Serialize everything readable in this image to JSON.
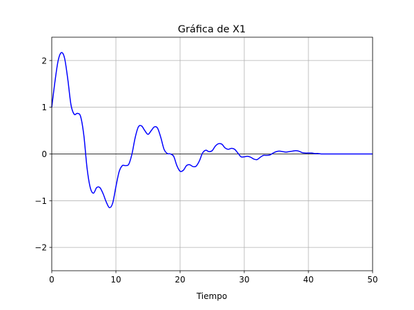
{
  "chart_data": {
    "type": "line",
    "title": "Gráfica de X1",
    "xlabel": "Tiempo",
    "ylabel": "",
    "xlim": [
      0,
      50
    ],
    "ylim": [
      -2.5,
      2.5
    ],
    "x_ticks": [
      0,
      10,
      20,
      30,
      40,
      50
    ],
    "y_ticks": [
      -2,
      -1,
      0,
      1,
      2
    ],
    "x_tick_labels": [
      "0",
      "10",
      "20",
      "30",
      "40",
      "50"
    ],
    "y_tick_labels": [
      "−2",
      "−1",
      "0",
      "1",
      "2"
    ],
    "grid": true,
    "zero_line": true,
    "legend": "none",
    "series": [
      {
        "color": "#0000ff",
        "x": [
          0,
          0.5,
          1,
          1.5,
          2,
          2.5,
          3,
          3.5,
          4,
          4.5,
          5,
          5.5,
          6,
          6.5,
          7,
          7.5,
          8,
          8.5,
          9,
          9.5,
          10,
          10.5,
          11,
          11.5,
          12,
          12.5,
          13,
          13.5,
          14,
          14.5,
          15,
          15.5,
          16,
          16.5,
          17,
          17.5,
          18,
          18.5,
          19,
          19.5,
          20,
          20.5,
          21,
          21.5,
          22,
          22.5,
          23,
          23.5,
          24,
          24.5,
          25,
          25.5,
          26,
          26.5,
          27,
          27.5,
          28,
          28.5,
          29,
          29.5,
          30,
          30.5,
          31,
          31.5,
          32,
          32.5,
          33,
          33.5,
          34,
          34.5,
          35,
          35.5,
          36,
          36.5,
          37,
          37.5,
          38,
          38.5,
          39,
          39.5,
          40,
          40.5,
          41,
          41.5,
          42,
          42.5,
          43,
          43.5,
          44,
          44.5,
          45,
          45.5,
          46,
          46.5,
          47,
          47.5,
          48,
          48.5,
          49,
          49.5,
          50
        ],
        "y": [
          1.0,
          1.55,
          2.0,
          2.17,
          2.05,
          1.6,
          1.05,
          0.85,
          0.87,
          0.8,
          0.4,
          -0.3,
          -0.72,
          -0.84,
          -0.72,
          -0.72,
          -0.85,
          -1.03,
          -1.15,
          -1.05,
          -0.7,
          -0.38,
          -0.25,
          -0.25,
          -0.22,
          0.0,
          0.35,
          0.58,
          0.6,
          0.5,
          0.42,
          0.5,
          0.58,
          0.55,
          0.35,
          0.1,
          0.01,
          0.0,
          -0.05,
          -0.25,
          -0.37,
          -0.35,
          -0.25,
          -0.23,
          -0.27,
          -0.26,
          -0.15,
          0.02,
          0.08,
          0.05,
          0.07,
          0.17,
          0.22,
          0.21,
          0.13,
          0.1,
          0.12,
          0.1,
          0.02,
          -0.06,
          -0.06,
          -0.05,
          -0.07,
          -0.11,
          -0.12,
          -0.07,
          -0.03,
          -0.03,
          -0.02,
          0.02,
          0.05,
          0.06,
          0.05,
          0.04,
          0.05,
          0.06,
          0.07,
          0.06,
          0.03,
          0.02,
          0.02,
          0.02,
          0.01,
          0.01,
          0.0,
          0.0,
          0.0,
          0.0,
          0.0,
          0.0,
          0.0,
          0.0,
          0.0,
          0.0,
          0.0,
          0.0,
          0.0,
          0.0,
          0.0,
          0.0,
          0.0
        ]
      }
    ]
  }
}
